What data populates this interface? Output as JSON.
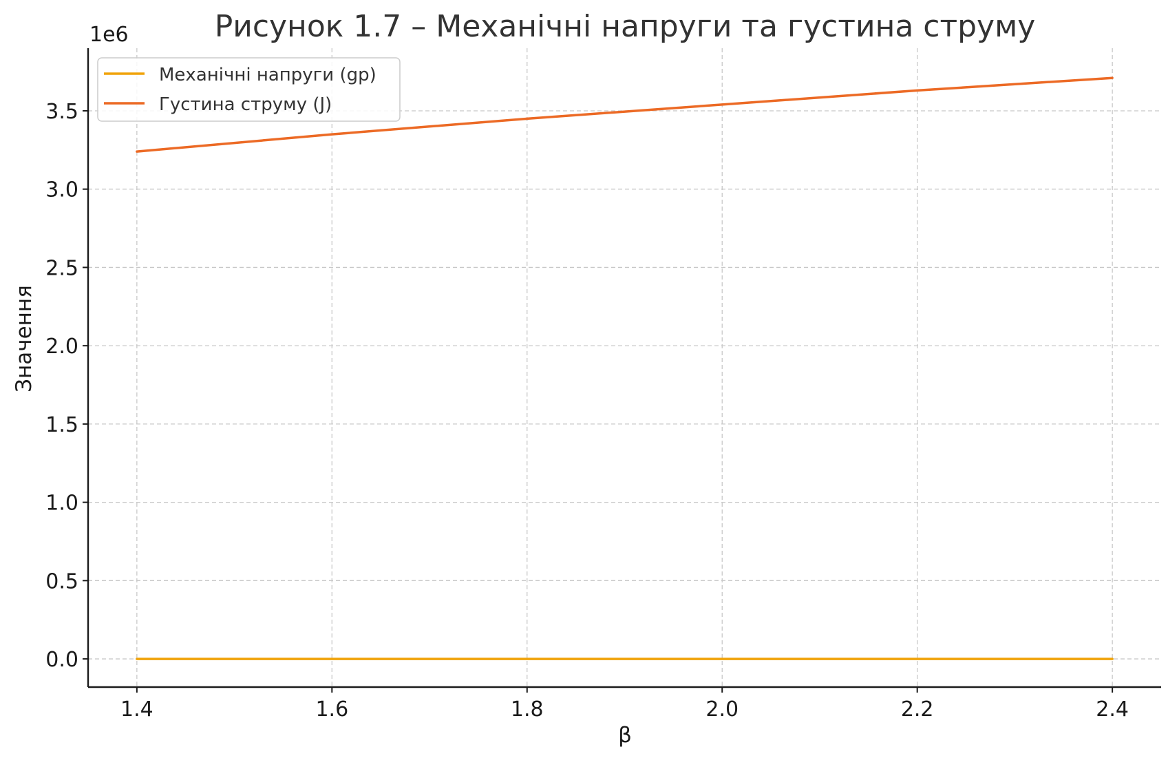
{
  "chart_data": {
    "type": "line",
    "title": "Рисунок 1.7 – Механічні напруги та густина струму",
    "xlabel": "β",
    "ylabel": "Значення",
    "y_offset_label": "1e6",
    "x": [
      1.4,
      1.6,
      1.8,
      2.0,
      2.2,
      2.4
    ],
    "xlim": [
      1.35,
      2.45
    ],
    "ylim": [
      -0.18,
      3.9
    ],
    "y_scale_factor": 1000000,
    "xticks": [
      1.4,
      1.6,
      1.8,
      2.0,
      2.2,
      2.4
    ],
    "xtick_labels": [
      "1.4",
      "1.6",
      "1.8",
      "2.0",
      "2.2",
      "2.4"
    ],
    "yticks": [
      0.0,
      0.5,
      1.0,
      1.5,
      2.0,
      2.5,
      3.0,
      3.5
    ],
    "ytick_labels": [
      "0.0",
      "0.5",
      "1.0",
      "1.5",
      "2.0",
      "2.5",
      "3.0",
      "3.5"
    ],
    "grid": true,
    "legend_position": "top-left",
    "series": [
      {
        "name": "Механічні напруги (gp)",
        "color": "#f0a30a",
        "values": [
          0.0,
          0.0,
          0.0,
          0.0,
          0.0,
          0.0
        ]
      },
      {
        "name": "Густина струму (J)",
        "color": "#ec6a25",
        "values": [
          3.24,
          3.35,
          3.45,
          3.54,
          3.63,
          3.71
        ]
      }
    ]
  }
}
